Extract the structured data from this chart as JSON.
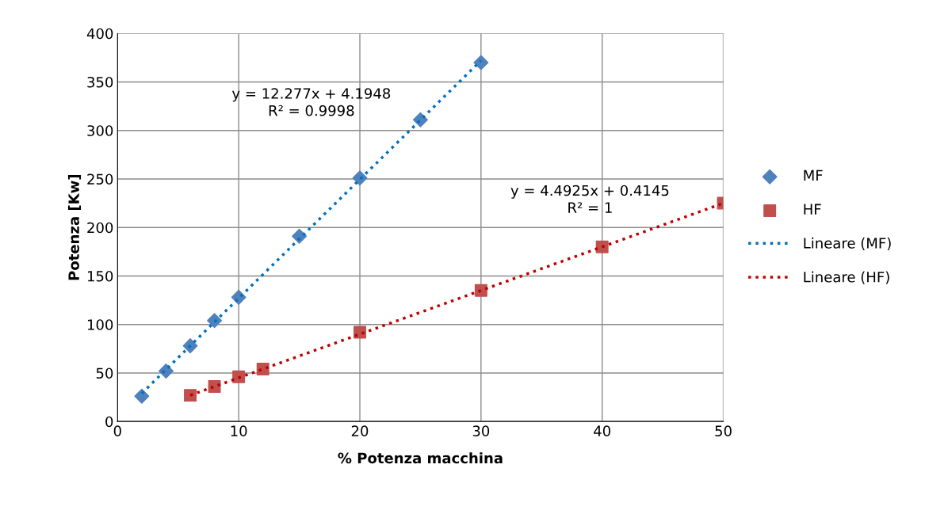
{
  "chart_data": {
    "type": "scatter",
    "xlabel": "% Potenza macchina",
    "ylabel": "Potenza [Kw]",
    "xlim": [
      0,
      50
    ],
    "xticks": [
      0,
      10,
      20,
      30,
      40,
      50
    ],
    "ylim": [
      0,
      400
    ],
    "yticks": [
      0,
      50,
      100,
      150,
      200,
      250,
      300,
      350,
      400
    ],
    "grid": true,
    "legend": "right",
    "series": [
      {
        "name": "MF",
        "marker": "diamond",
        "color": "#4f81bd",
        "x": [
          2,
          4,
          6,
          8,
          10,
          15,
          20,
          25,
          30
        ],
        "values": [
          26,
          52,
          78,
          104,
          128,
          191,
          251,
          311,
          370
        ]
      },
      {
        "name": "HF",
        "marker": "square",
        "color": "#c0504d",
        "x": [
          6,
          8,
          10,
          12,
          20,
          30,
          40,
          50
        ],
        "values": [
          27,
          36,
          46,
          54,
          92,
          135,
          180,
          225
        ]
      },
      {
        "name": "Lineare (MF)",
        "type": "line",
        "line_style": "dotted",
        "color": "#0070c0",
        "x": [
          2,
          30
        ],
        "values": [
          29,
          372
        ]
      },
      {
        "name": "Lineare (HF)",
        "type": "line",
        "line_style": "dotted",
        "color": "#c00000",
        "x": [
          6,
          50
        ],
        "values": [
          27,
          225
        ]
      }
    ],
    "annotations": [
      "y = 12.277x + 4.1948\nR² = 0.9998",
      "y = 4.4925x + 0.4145\nR² = 1"
    ]
  }
}
